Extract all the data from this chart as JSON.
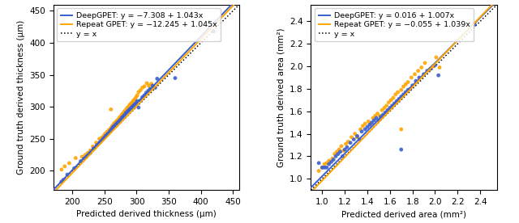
{
  "plot1": {
    "xlabel": "Predicted derived thickness (μm)",
    "ylabel": "Ground truth derived thickness (μm)",
    "xlim": [
      170,
      460
    ],
    "ylim": [
      170,
      460
    ],
    "xticks": [
      200,
      250,
      300,
      350,
      400,
      450
    ],
    "yticks": [
      200,
      250,
      300,
      350,
      400,
      450
    ],
    "deepgpet_label": "DeepGPET: y = −7.308 + 1.043x",
    "repeat_label": "Repeat GPET: y = −12.245 + 1.045x",
    "identity_label": "y = x",
    "deep_intercept": -7.308,
    "deep_slope": 1.043,
    "repeat_intercept": -12.245,
    "repeat_slope": 1.045,
    "blue_x": [
      183,
      186,
      192,
      203,
      213,
      218,
      222,
      228,
      233,
      238,
      242,
      245,
      248,
      250,
      252,
      255,
      258,
      260,
      262,
      263,
      265,
      267,
      269,
      271,
      273,
      275,
      277,
      279,
      281,
      283,
      285,
      287,
      289,
      291,
      293,
      295,
      297,
      299,
      301,
      303,
      306,
      309,
      312,
      315,
      318,
      321,
      325,
      329,
      332,
      360,
      420
    ],
    "blue_y": [
      183,
      186,
      194,
      204,
      215,
      219,
      222,
      228,
      235,
      240,
      244,
      247,
      250,
      252,
      255,
      258,
      261,
      264,
      266,
      268,
      270,
      272,
      274,
      276,
      278,
      280,
      283,
      285,
      287,
      290,
      292,
      294,
      296,
      298,
      300,
      302,
      304,
      306,
      309,
      299,
      310,
      315,
      318,
      322,
      325,
      328,
      333,
      330,
      344,
      345,
      418
    ],
    "orange_x": [
      183,
      188,
      195,
      205,
      215,
      220,
      224,
      228,
      232,
      237,
      242,
      246,
      249,
      251,
      254,
      257,
      260,
      262,
      264,
      265,
      267,
      269,
      271,
      273,
      275,
      277,
      279,
      281,
      283,
      285,
      287,
      289,
      291,
      293,
      295,
      297,
      299,
      301,
      303,
      306,
      309,
      312,
      316,
      319,
      323,
      326,
      260,
      420
    ],
    "orange_y": [
      202,
      207,
      212,
      220,
      222,
      225,
      228,
      232,
      238,
      244,
      250,
      252,
      255,
      258,
      261,
      264,
      267,
      270,
      272,
      274,
      276,
      278,
      280,
      283,
      285,
      288,
      290,
      293,
      295,
      298,
      300,
      303,
      305,
      307,
      310,
      312,
      315,
      318,
      323,
      326,
      330,
      332,
      337,
      333,
      336,
      330,
      296,
      418
    ]
  },
  "plot2": {
    "xlabel": "Predicted derived area (mm²)",
    "ylabel": "Ground truth derived area (mm²)",
    "xlim": [
      0.9,
      2.55
    ],
    "ylim": [
      0.9,
      2.55
    ],
    "xticks": [
      1.0,
      1.2,
      1.4,
      1.6,
      1.8,
      2.0,
      2.2,
      2.4
    ],
    "yticks": [
      1.0,
      1.2,
      1.4,
      1.6,
      1.8,
      2.0,
      2.2,
      2.4
    ],
    "deepgpet_label": "DeepGPET: y = 0.016 + 1.007x",
    "repeat_label": "Repeat GPET: y = −0.055 + 1.039x",
    "identity_label": "y = x",
    "deep_intercept": 0.016,
    "deep_slope": 1.007,
    "repeat_intercept": -0.055,
    "repeat_slope": 1.039,
    "blue_x": [
      0.97,
      1.0,
      1.02,
      1.04,
      1.06,
      1.08,
      1.1,
      1.12,
      1.14,
      1.16,
      1.18,
      1.2,
      1.22,
      1.25,
      1.28,
      1.31,
      1.33,
      1.35,
      1.38,
      1.4,
      1.42,
      1.44,
      1.46,
      1.48,
      1.5,
      1.52,
      1.54,
      1.56,
      1.58,
      1.6,
      1.62,
      1.64,
      1.66,
      1.68,
      1.7,
      1.72,
      1.74,
      1.76,
      1.78,
      1.8,
      1.83,
      1.86,
      1.9,
      1.93,
      1.96,
      2.0,
      2.03,
      2.35,
      1.7
    ],
    "blue_y": [
      1.14,
      1.1,
      1.1,
      1.1,
      1.13,
      1.15,
      1.17,
      1.2,
      1.22,
      1.24,
      1.2,
      1.26,
      1.28,
      1.32,
      1.35,
      1.38,
      1.35,
      1.42,
      1.44,
      1.46,
      1.48,
      1.5,
      1.52,
      1.54,
      1.52,
      1.55,
      1.57,
      1.59,
      1.61,
      1.63,
      1.65,
      1.67,
      1.69,
      1.71,
      1.73,
      1.75,
      1.77,
      1.79,
      1.8,
      1.83,
      1.87,
      1.9,
      1.93,
      1.96,
      1.98,
      2.01,
      1.92,
      2.37,
      1.26
    ],
    "orange_x": [
      0.97,
      1.0,
      1.02,
      1.04,
      1.06,
      1.09,
      1.11,
      1.13,
      1.15,
      1.17,
      1.19,
      1.21,
      1.23,
      1.26,
      1.29,
      1.31,
      1.34,
      1.36,
      1.38,
      1.41,
      1.43,
      1.45,
      1.47,
      1.49,
      1.51,
      1.53,
      1.55,
      1.57,
      1.59,
      1.61,
      1.63,
      1.65,
      1.67,
      1.7,
      1.72,
      1.74,
      1.76,
      1.79,
      1.82,
      1.85,
      1.88,
      1.91,
      1.95,
      1.98,
      2.01,
      2.04,
      2.35,
      1.7
    ],
    "orange_y": [
      1.07,
      1.1,
      1.13,
      1.14,
      1.16,
      1.18,
      1.22,
      1.24,
      1.26,
      1.29,
      1.25,
      1.31,
      1.33,
      1.37,
      1.4,
      1.37,
      1.44,
      1.47,
      1.49,
      1.51,
      1.49,
      1.54,
      1.56,
      1.58,
      1.56,
      1.61,
      1.63,
      1.65,
      1.68,
      1.7,
      1.72,
      1.75,
      1.77,
      1.79,
      1.82,
      1.84,
      1.86,
      1.9,
      1.93,
      1.96,
      1.99,
      2.03,
      1.97,
      2.0,
      2.08,
      1.99,
      2.38,
      1.44
    ]
  },
  "blue_color": "#3a5fcd",
  "orange_color": "#FFA500",
  "dot_size": 12,
  "line_width": 1.4,
  "fontsize_label": 7.5,
  "fontsize_tick": 7.5,
  "fontsize_legend": 6.8
}
